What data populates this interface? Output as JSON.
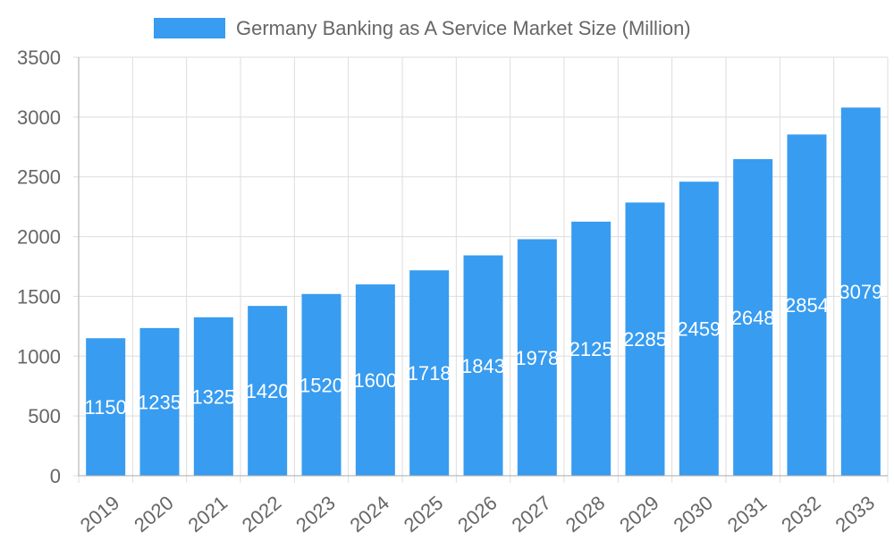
{
  "chart_data": {
    "type": "bar",
    "title": "",
    "xlabel": "",
    "ylabel": "",
    "legend": {
      "position": "top",
      "entries": [
        "Germany Banking as A Service Market Size (Million)"
      ]
    },
    "categories": [
      "2019",
      "2020",
      "2021",
      "2022",
      "2023",
      "2024",
      "2025",
      "2026",
      "2027",
      "2028",
      "2029",
      "2030",
      "2031",
      "2032",
      "2033"
    ],
    "series": [
      {
        "name": "Germany Banking as A Service Market Size (Million)",
        "values": [
          1150,
          1235,
          1325,
          1420,
          1520,
          1600,
          1718,
          1843,
          1978,
          2125,
          2285,
          2459,
          2648,
          2854,
          3079
        ],
        "color": "#389cf0"
      }
    ],
    "ylim": [
      0,
      3500
    ],
    "yticks": [
      0,
      500,
      1000,
      1500,
      2000,
      2500,
      3000,
      3500
    ],
    "grid": true,
    "data_labels": true
  }
}
